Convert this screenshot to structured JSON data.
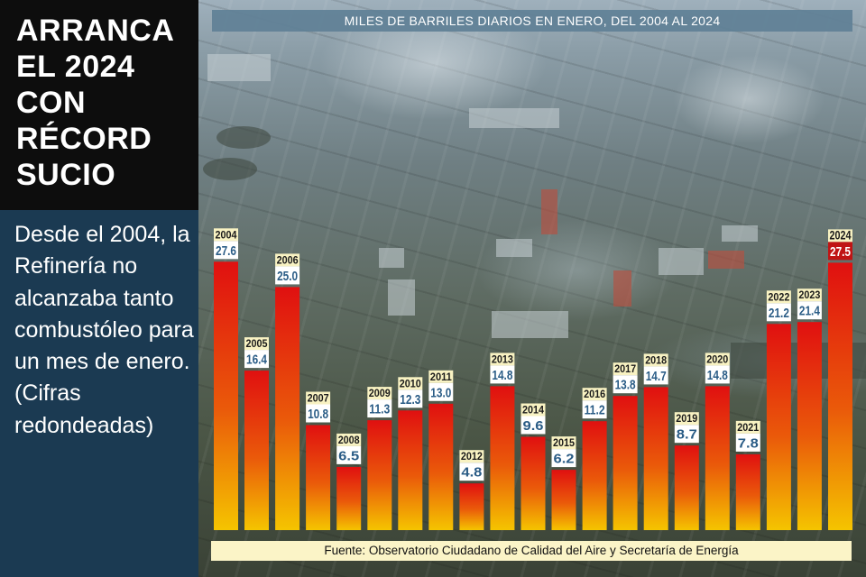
{
  "headline": "ARRANCA EL 2024 CON RÉCORD SUCIO",
  "lede": "Desde el 2004, la Refinería no alcanzaba tanto combustóleo para un mes de enero. (Cifras redondeadas)",
  "source": "Fuente: Observatorio Ciudadano de Calidad del Aire y Secretaría de Energía",
  "colors": {
    "bar_top": "#e01010",
    "bar_bottom": "#f5c400",
    "value_label": "#2a5c86",
    "highlight_label_bg": "#c01414",
    "title_bar": "#5f8096",
    "source_bar": "#fbf4c7"
  },
  "chart_data": {
    "type": "bar",
    "title": "MILES DE BARRILES DIARIOS EN ENERO, DEL 2004 AL 2024",
    "categories": [
      "2004",
      "2005",
      "2006",
      "2007",
      "2008",
      "2009",
      "2010",
      "2011",
      "2012",
      "2013",
      "2014",
      "2015",
      "2016",
      "2017",
      "2018",
      "2019",
      "2020",
      "2021",
      "2022",
      "2023",
      "2024"
    ],
    "values": [
      27.6,
      16.4,
      25.0,
      10.8,
      6.5,
      11.3,
      12.3,
      13.0,
      4.8,
      14.8,
      9.6,
      6.2,
      11.2,
      13.8,
      14.7,
      8.7,
      14.8,
      7.8,
      21.2,
      21.4,
      27.5
    ],
    "value_labels": [
      "27.6",
      "16.4",
      "25.0",
      "10.8",
      "6.5",
      "11.3",
      "12.3",
      "13.0",
      "4.8",
      "14.8",
      "9.6",
      "6.2",
      "11.2",
      "13.8",
      "14.7",
      "8.7",
      "14.8",
      "7.8",
      "21.2",
      "21.4",
      "27.5"
    ],
    "highlight": "2024",
    "xlabel": "",
    "ylabel": "",
    "grid": false,
    "legend": "none",
    "ylim": [
      0,
      28
    ]
  }
}
